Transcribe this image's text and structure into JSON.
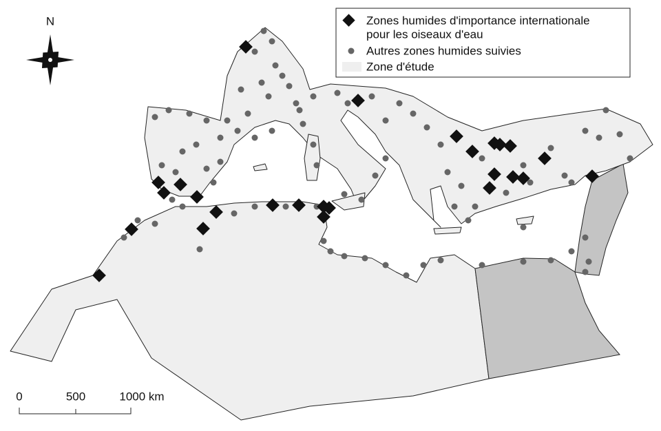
{
  "north_label": "N",
  "legend": {
    "items": [
      {
        "lines": [
          "Zones humides d'importance internationale",
          "pour les oiseaux d'eau"
        ]
      },
      {
        "lines": [
          "Autres zones humides suivies"
        ]
      },
      {
        "lines": [
          "Zone d'étude"
        ]
      }
    ]
  },
  "scale_bar": {
    "labels": [
      "0",
      "500",
      "1000 km"
    ]
  }
}
